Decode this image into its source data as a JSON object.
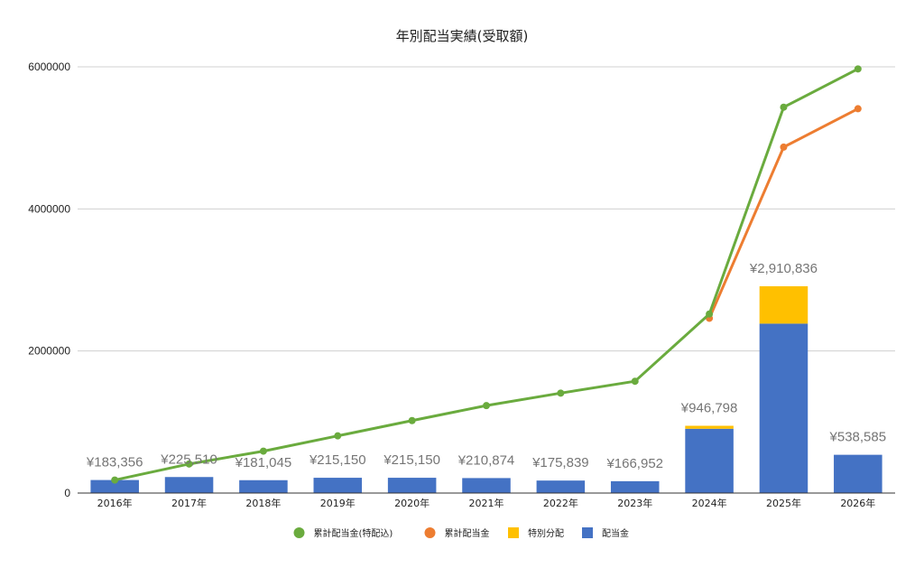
{
  "chart_data": {
    "type": "bar",
    "title": "年別配当実績(受取額)",
    "categories": [
      "2016年",
      "2017年",
      "2018年",
      "2019年",
      "2020年",
      "2021年",
      "2022年",
      "2023年",
      "2024年",
      "2025年",
      "2026年"
    ],
    "ylim": [
      0,
      6000000
    ],
    "y_ticks": [
      "0",
      "2000000",
      "4000000",
      "6000000"
    ],
    "grid": true,
    "legend_position": "bottom",
    "bar_totals_labels": [
      "¥183,356",
      "¥225,510",
      "¥181,045",
      "¥215,150",
      "¥215,150",
      "¥210,874",
      "¥175,839",
      "¥166,952",
      "¥946,798",
      "¥2,910,836",
      "¥538,585"
    ],
    "series": [
      {
        "name": "配当金",
        "kind": "bar",
        "color": "#4472C4",
        "values": [
          183356,
          225510,
          181045,
          215150,
          215150,
          210874,
          175839,
          166952,
          905000,
          2385000,
          538585
        ]
      },
      {
        "name": "特別分配",
        "kind": "bar",
        "color": "#FFC000",
        "values": [
          0,
          0,
          0,
          0,
          0,
          0,
          0,
          0,
          41798,
          525836,
          0
        ]
      },
      {
        "name": "累計配当金",
        "kind": "line",
        "color": "#ED7D31",
        "values": [
          null,
          null,
          null,
          null,
          null,
          null,
          null,
          null,
          2460000,
          4870000,
          5410000
        ]
      },
      {
        "name": "累計配当金(特配込)",
        "kind": "line",
        "color": "#6AAB3E",
        "values": [
          183356,
          408866,
          589911,
          805061,
          1020211,
          1231085,
          1406924,
          1573876,
          2520674,
          5431510,
          5970095
        ]
      }
    ],
    "legend": [
      {
        "name": "累計配当金(特配込)",
        "color": "#6AAB3E",
        "shape": "circle"
      },
      {
        "name": "累計配当金",
        "color": "#ED7D31",
        "shape": "circle"
      },
      {
        "name": "特別分配",
        "color": "#FFC000",
        "shape": "square"
      },
      {
        "name": "配当金",
        "color": "#4472C4",
        "shape": "square"
      }
    ]
  }
}
